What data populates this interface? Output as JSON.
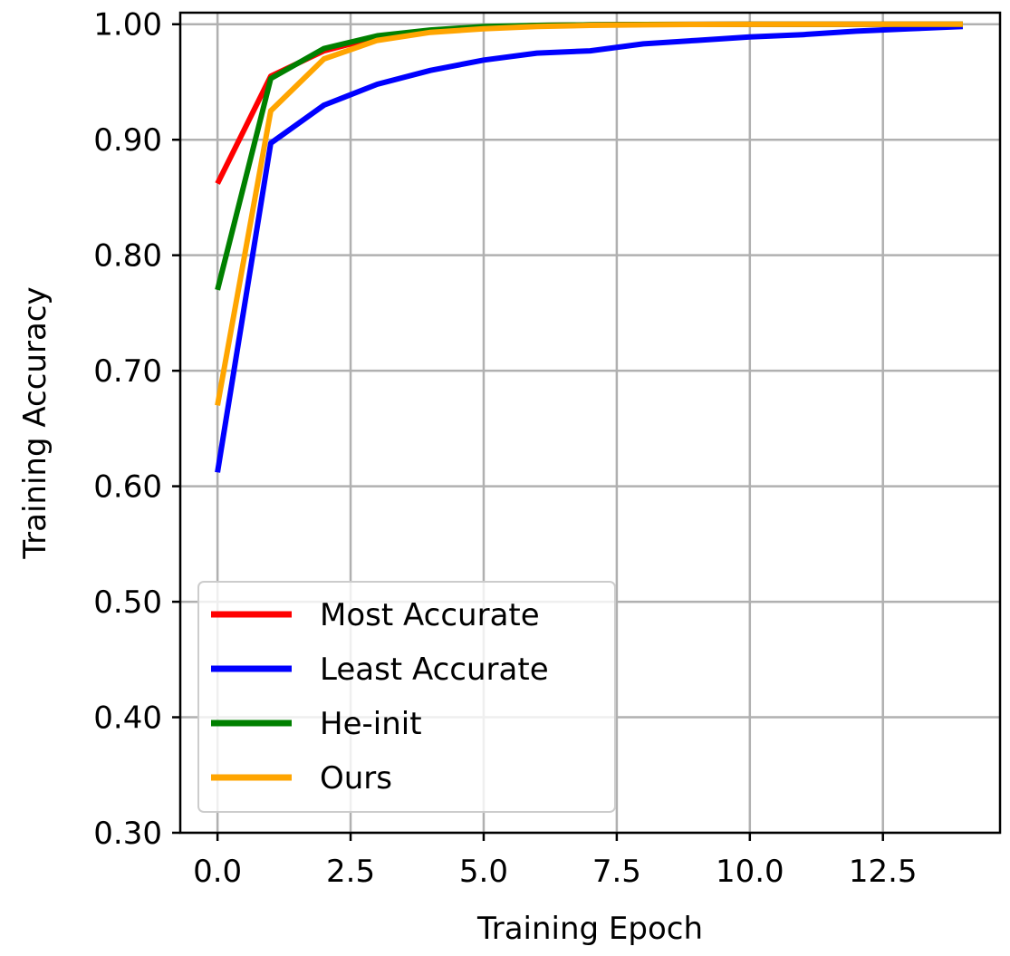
{
  "chart_data": {
    "type": "line",
    "xlabel": "Training Epoch",
    "ylabel": "Training Accuracy",
    "xlim": [
      -0.7,
      14.7
    ],
    "ylim": [
      0.3,
      1.01
    ],
    "xticks": [
      0.0,
      2.5,
      5.0,
      7.5,
      10.0,
      12.5
    ],
    "xtick_labels": [
      "0.0",
      "2.5",
      "5.0",
      "7.5",
      "10.0",
      "12.5"
    ],
    "yticks": [
      0.3,
      0.4,
      0.5,
      0.6,
      0.7,
      0.8,
      0.9,
      1.0
    ],
    "ytick_labels": [
      "0.30",
      "0.40",
      "0.50",
      "0.60",
      "0.70",
      "0.80",
      "0.90",
      "1.00"
    ],
    "grid": true,
    "legend_position": "lower-left",
    "x": [
      0,
      1,
      2,
      3,
      4,
      5,
      6,
      7,
      8,
      9,
      10,
      11,
      12,
      13,
      14
    ],
    "series": [
      {
        "name": "Most Accurate",
        "color": "#ff0000",
        "values": [
          0.862,
          0.955,
          0.977,
          0.989,
          0.994,
          0.997,
          0.999,
          0.9995,
          0.9998,
          0.9999,
          1.0,
          1.0,
          1.0,
          1.0,
          1.0
        ]
      },
      {
        "name": "Least Accurate",
        "color": "#0000ff",
        "values": [
          0.612,
          0.897,
          0.93,
          0.948,
          0.96,
          0.969,
          0.975,
          0.977,
          0.983,
          0.986,
          0.989,
          0.991,
          0.994,
          0.996,
          0.998
        ]
      },
      {
        "name": "He-init",
        "color": "#008000",
        "values": [
          0.77,
          0.953,
          0.979,
          0.99,
          0.995,
          0.998,
          0.999,
          0.9995,
          0.9998,
          0.9999,
          1.0,
          1.0,
          1.0,
          1.0,
          1.0
        ]
      },
      {
        "name": "Ours",
        "color": "#ffa500",
        "values": [
          0.67,
          0.925,
          0.97,
          0.986,
          0.993,
          0.996,
          0.998,
          0.999,
          0.9995,
          0.9998,
          0.9999,
          1.0,
          1.0,
          1.0,
          1.0
        ]
      }
    ]
  }
}
